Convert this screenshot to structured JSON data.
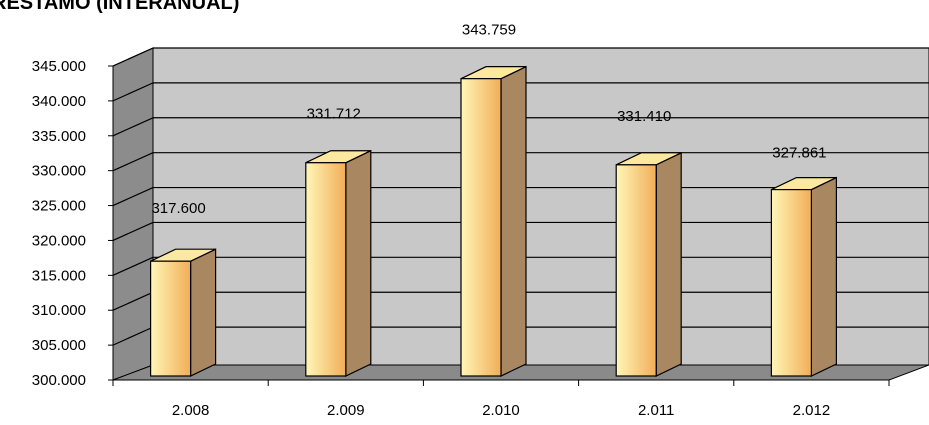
{
  "chart_data": {
    "type": "bar",
    "title": "RESTAMO (INTERANUAL)",
    "categories": [
      "2.008",
      "2.009",
      "2.010",
      "2.011",
      "2.012"
    ],
    "values": [
      317600,
      331712,
      343759,
      331410,
      327861
    ],
    "value_labels": [
      "317.600",
      "331.712",
      "343.759",
      "331.410",
      "327.861"
    ],
    "ylim": [
      300000,
      345000
    ],
    "y_ticks": [
      "300.000",
      "305.000",
      "310.000",
      "315.000",
      "320.000",
      "325.000",
      "330.000",
      "335.000",
      "340.000",
      "345.000"
    ],
    "grid": true,
    "style_3d": true,
    "colors": {
      "bar_front_light": "#fff2a8",
      "bar_front_dark": "#f2b05a",
      "bar_side": "#a98760",
      "bar_top": "#fde8a0",
      "wall": "#c8c8c8",
      "side_wall": "#8c8c8c",
      "floor": "#8a8a8a"
    }
  }
}
